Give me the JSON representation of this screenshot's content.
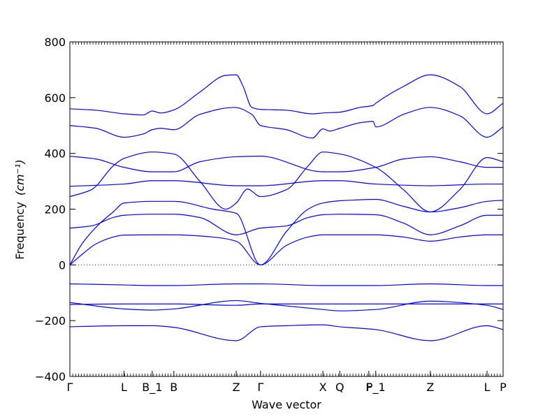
{
  "chart_data": {
    "type": "line",
    "xlabel": "Wave vector",
    "ylabel": "Frequency",
    "ylabel_unit": "(cm⁻¹)",
    "ylim": [
      -400,
      800
    ],
    "xlim": [
      0,
      1
    ],
    "y_ticks": [
      -400,
      -200,
      0,
      200,
      400,
      600,
      800
    ],
    "x_ticks": [
      {
        "x": 0.0,
        "label": "Γ"
      },
      {
        "x": 0.125,
        "label": "L"
      },
      {
        "x": 0.19,
        "label": "B_1"
      },
      {
        "x": 0.24,
        "label": "B"
      },
      {
        "x": 0.384,
        "label": "Z"
      },
      {
        "x": 0.44,
        "label": "Γ"
      },
      {
        "x": 0.584,
        "label": "X"
      },
      {
        "x": 0.623,
        "label": "Q"
      },
      {
        "x": 0.69,
        "label": "F"
      },
      {
        "x": 0.706,
        "label": "P_1"
      },
      {
        "x": 0.832,
        "label": "Z"
      },
      {
        "x": 0.963,
        "label": "L"
      },
      {
        "x": 1.0,
        "label": "P"
      }
    ],
    "zero_line": true,
    "line_color": "#0000ff",
    "series": [
      {
        "x": [
          0,
          0.05,
          0.125,
          0.19,
          0.24,
          0.384,
          0.44,
          0.5,
          0.584,
          0.623,
          0.706,
          0.832,
          0.963,
          1.0
        ],
        "values": [
          -222,
          -220,
          -218,
          -218,
          -224,
          -272,
          -222,
          -218,
          -215,
          -222,
          -232,
          -272,
          -218,
          -232
        ]
      },
      {
        "x": [
          0,
          0.125,
          0.19,
          0.24,
          0.384,
          0.44,
          0.584,
          0.623,
          0.706,
          0.832,
          0.963,
          1.0
        ],
        "values": [
          -135,
          -158,
          -162,
          -158,
          -128,
          -138,
          -160,
          -165,
          -160,
          -130,
          -145,
          -160
        ]
      },
      {
        "x": [
          0,
          0.125,
          0.19,
          0.24,
          0.384,
          0.44,
          0.584,
          0.623,
          0.706,
          0.832,
          0.963,
          1.0
        ],
        "values": [
          -142,
          -140,
          -140,
          -140,
          -145,
          -140,
          -140,
          -140,
          -140,
          -140,
          -140,
          -140
        ]
      },
      {
        "x": [
          0,
          0.125,
          0.19,
          0.24,
          0.384,
          0.44,
          0.584,
          0.623,
          0.706,
          0.832,
          0.963,
          1.0
        ],
        "values": [
          -68,
          -72,
          -74,
          -74,
          -68,
          -68,
          -74,
          -74,
          -74,
          -68,
          -74,
          -74
        ]
      },
      {
        "x": [
          0,
          0.03,
          0.06,
          0.1,
          0.125,
          0.19,
          0.24,
          0.33,
          0.384,
          0.44,
          0.5,
          0.55,
          0.584,
          0.623,
          0.706,
          0.77,
          0.832,
          0.9,
          0.963,
          1.0
        ],
        "values": [
          0,
          40,
          75,
          100,
          107,
          108,
          108,
          100,
          85,
          0,
          70,
          100,
          108,
          108,
          108,
          100,
          85,
          100,
          108,
          108
        ]
      },
      {
        "x": [
          0,
          0.03,
          0.07,
          0.1,
          0.125,
          0.19,
          0.24,
          0.33,
          0.384,
          0.44,
          0.5,
          0.55,
          0.584,
          0.623,
          0.706,
          0.77,
          0.832,
          0.9,
          0.963,
          1.0
        ],
        "values": [
          0,
          80,
          150,
          190,
          222,
          228,
          228,
          200,
          185,
          0,
          120,
          200,
          222,
          230,
          235,
          210,
          190,
          205,
          228,
          232
        ]
      },
      {
        "x": [
          0,
          0.05,
          0.1,
          0.125,
          0.19,
          0.24,
          0.3,
          0.384,
          0.44,
          0.5,
          0.55,
          0.584,
          0.623,
          0.706,
          0.77,
          0.832,
          0.9,
          0.963,
          1.0
        ],
        "values": [
          132,
          140,
          170,
          178,
          182,
          182,
          170,
          108,
          132,
          140,
          170,
          180,
          182,
          180,
          150,
          108,
          140,
          178,
          178
        ]
      },
      {
        "x": [
          0,
          0.125,
          0.19,
          0.24,
          0.384,
          0.44,
          0.584,
          0.623,
          0.706,
          0.832,
          0.963,
          1.0
        ],
        "values": [
          282,
          290,
          302,
          302,
          284,
          284,
          302,
          302,
          290,
          284,
          290,
          290
        ]
      },
      {
        "x": [
          0,
          0.05,
          0.1,
          0.125,
          0.19,
          0.24,
          0.3,
          0.36,
          0.384,
          0.41,
          0.44,
          0.5,
          0.55,
          0.584,
          0.623,
          0.706,
          0.77,
          0.832,
          0.9,
          0.963,
          1.0
        ],
        "values": [
          245,
          270,
          355,
          382,
          405,
          398,
          300,
          200,
          222,
          272,
          245,
          270,
          355,
          405,
          398,
          350,
          270,
          190,
          270,
          385,
          370
        ]
      },
      {
        "x": [
          0,
          0.06,
          0.125,
          0.19,
          0.24,
          0.3,
          0.384,
          0.44,
          0.584,
          0.623,
          0.706,
          0.77,
          0.832,
          0.9,
          0.963,
          1.0
        ],
        "values": [
          390,
          380,
          350,
          334,
          334,
          370,
          388,
          390,
          334,
          334,
          350,
          380,
          388,
          370,
          350,
          350
        ]
      },
      {
        "x": [
          0,
          0.06,
          0.125,
          0.17,
          0.19,
          0.21,
          0.24,
          0.3,
          0.38,
          0.42,
          0.44,
          0.5,
          0.56,
          0.584,
          0.6,
          0.623,
          0.67,
          0.7,
          0.706,
          0.77,
          0.832,
          0.9,
          0.963,
          1.0
        ],
        "values": [
          500,
          490,
          458,
          470,
          485,
          490,
          485,
          540,
          565,
          540,
          500,
          485,
          455,
          488,
          480,
          490,
          510,
          515,
          495,
          540,
          565,
          535,
          458,
          495
        ]
      },
      {
        "x": [
          0,
          0.06,
          0.125,
          0.17,
          0.19,
          0.21,
          0.24,
          0.3,
          0.36,
          0.384,
          0.4,
          0.42,
          0.44,
          0.5,
          0.56,
          0.584,
          0.623,
          0.67,
          0.7,
          0.706,
          0.77,
          0.832,
          0.9,
          0.963,
          1.0
        ],
        "values": [
          560,
          555,
          542,
          538,
          552,
          545,
          556,
          620,
          680,
          682,
          640,
          565,
          558,
          555,
          542,
          545,
          548,
          565,
          572,
          580,
          640,
          682,
          640,
          542,
          580
        ]
      }
    ]
  }
}
